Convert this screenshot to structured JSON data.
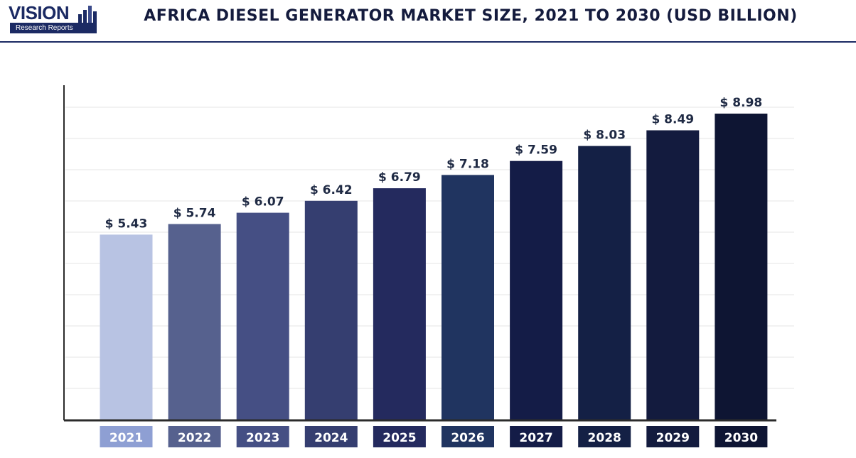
{
  "header": {
    "logo_text": "VISION",
    "logo_subtext": "Research Reports",
    "title": "AFRICA DIESEL GENERATOR MARKET SIZE, 2021 TO 2030 (USD BILLION)"
  },
  "chart_data": {
    "type": "bar",
    "title": "AFRICA DIESEL GENERATOR MARKET SIZE, 2021 TO 2030 (USD BILLION)",
    "xlabel": "",
    "ylabel": "",
    "categories": [
      "2021",
      "2022",
      "2023",
      "2024",
      "2025",
      "2026",
      "2027",
      "2028",
      "2029",
      "2030"
    ],
    "values": [
      5.43,
      5.74,
      6.07,
      6.42,
      6.79,
      7.18,
      7.59,
      8.03,
      8.49,
      8.98
    ],
    "value_labels": [
      "$ 5.43",
      "$ 5.74",
      "$ 6.07",
      "$ 6.42",
      "$ 6.79",
      "$ 7.18",
      "$ 7.59",
      "$ 8.03",
      "$ 8.49",
      "$ 8.98"
    ],
    "grid": true,
    "legend": "none",
    "bar_colors": [
      "#b8c3e3",
      "#56618e",
      "#454f84",
      "#353e70",
      "#242a5e",
      "#203460",
      "#141c47",
      "#142045",
      "#131b3e",
      "#0e1533"
    ],
    "label_box_colors": [
      "#8e9fd3",
      "#56618e",
      "#454f84",
      "#353e70",
      "#242a5e",
      "#203460",
      "#141c47",
      "#142045",
      "#131b3e",
      "#0e1533"
    ]
  }
}
